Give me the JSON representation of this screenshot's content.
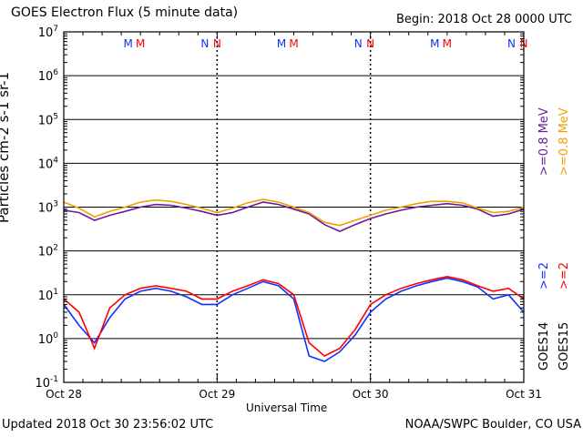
{
  "header": {
    "title": "GOES Electron Flux (5 minute data)",
    "begin": "Begin: 2018 Oct 28 0000 UTC"
  },
  "footer": {
    "updated": "Updated 2018 Oct 30 23:56:02 UTC",
    "credit": "NOAA/SWPC Boulder, CO USA"
  },
  "right_labels": {
    "goes14_08": ">=0.8 MeV",
    "goes14_2": ">=2",
    "goes14_sat": "GOES14",
    "goes15_08": ">=0.8 MeV",
    "goes15_2": ">=2",
    "goes15_sat": "GOES15"
  },
  "colors": {
    "goes14_08": "#6a1a9a",
    "goes15_08": "#f0a000",
    "goes14_2": "#1030ff",
    "goes15_2": "#ff0000",
    "marker_m14": "#1030ff",
    "marker_m15": "#ff0000"
  },
  "chart_data": {
    "type": "line",
    "title": "GOES Electron Flux (5 minute data)",
    "xlabel": "Universal Time",
    "ylabel": "Particles cm-2 s-1 sr-1",
    "ylog": true,
    "ylim_exp": [
      -1,
      7
    ],
    "ytick_exponents": [
      7,
      6,
      5,
      4,
      3,
      2,
      1,
      0,
      -1
    ],
    "x_ticks": [
      "Oct 28",
      "Oct 29",
      "Oct 30",
      "Oct 31"
    ],
    "xlim_days": [
      0,
      3
    ],
    "threshold": 1000,
    "grid": true,
    "markers": [
      {
        "day": 0.42,
        "label": "M",
        "sat": "goes14"
      },
      {
        "day": 0.5,
        "label": "M",
        "sat": "goes15"
      },
      {
        "day": 0.92,
        "label": "N",
        "sat": "goes14"
      },
      {
        "day": 1.0,
        "label": "N",
        "sat": "goes15"
      },
      {
        "day": 1.42,
        "label": "M",
        "sat": "goes14"
      },
      {
        "day": 1.5,
        "label": "M",
        "sat": "goes15"
      },
      {
        "day": 1.92,
        "label": "N",
        "sat": "goes14"
      },
      {
        "day": 2.0,
        "label": "N",
        "sat": "goes15"
      },
      {
        "day": 2.42,
        "label": "M",
        "sat": "goes14"
      },
      {
        "day": 2.5,
        "label": "M",
        "sat": "goes15"
      },
      {
        "day": 2.92,
        "label": "N",
        "sat": "goes14"
      },
      {
        "day": 3.0,
        "label": "N",
        "sat": "goes15"
      }
    ],
    "series": [
      {
        "name": "GOES14 >=0.8 MeV",
        "x": [
          0,
          0.1,
          0.2,
          0.3,
          0.4,
          0.5,
          0.6,
          0.7,
          0.8,
          0.9,
          1.0,
          1.1,
          1.2,
          1.3,
          1.4,
          1.5,
          1.6,
          1.7,
          1.8,
          1.9,
          2.0,
          2.1,
          2.2,
          2.3,
          2.4,
          2.5,
          2.6,
          2.7,
          2.8,
          2.9,
          3.0
        ],
        "y": [
          850,
          750,
          500,
          650,
          800,
          1000,
          1150,
          1100,
          950,
          800,
          650,
          750,
          1000,
          1300,
          1150,
          900,
          700,
          400,
          280,
          400,
          550,
          700,
          850,
          1000,
          1100,
          1200,
          1100,
          900,
          620,
          700,
          900
        ]
      },
      {
        "name": "GOES15 >=0.8 MeV",
        "x": [
          0,
          0.1,
          0.2,
          0.3,
          0.4,
          0.5,
          0.6,
          0.7,
          0.8,
          0.9,
          1.0,
          1.1,
          1.2,
          1.3,
          1.4,
          1.5,
          1.6,
          1.7,
          1.8,
          1.9,
          2.0,
          2.1,
          2.2,
          2.3,
          2.4,
          2.5,
          2.6,
          2.7,
          2.8,
          2.9,
          3.0
        ],
        "y": [
          1300,
          950,
          600,
          800,
          1000,
          1300,
          1450,
          1350,
          1150,
          950,
          750,
          950,
          1250,
          1500,
          1300,
          1000,
          750,
          450,
          380,
          500,
          650,
          850,
          1000,
          1200,
          1350,
          1350,
          1250,
          950,
          750,
          800,
          1000
        ]
      },
      {
        "name": "GOES14 >=2",
        "x": [
          0,
          0.1,
          0.2,
          0.3,
          0.4,
          0.5,
          0.6,
          0.7,
          0.8,
          0.9,
          1.0,
          1.1,
          1.2,
          1.3,
          1.4,
          1.5,
          1.6,
          1.7,
          1.8,
          1.9,
          2.0,
          2.1,
          2.2,
          2.3,
          2.4,
          2.5,
          2.6,
          2.7,
          2.8,
          2.9,
          3.0
        ],
        "y": [
          6,
          2,
          0.8,
          3,
          8,
          12,
          14,
          12,
          9,
          6,
          6,
          10,
          14,
          20,
          16,
          8,
          0.4,
          0.3,
          0.5,
          1.2,
          4,
          8,
          12,
          16,
          20,
          24,
          20,
          15,
          8,
          10,
          4
        ]
      },
      {
        "name": "GOES15 >=2",
        "x": [
          0,
          0.1,
          0.2,
          0.3,
          0.4,
          0.5,
          0.6,
          0.7,
          0.8,
          0.9,
          1.0,
          1.1,
          1.2,
          1.3,
          1.4,
          1.5,
          1.6,
          1.7,
          1.8,
          1.9,
          2.0,
          2.1,
          2.2,
          2.3,
          2.4,
          2.5,
          2.6,
          2.7,
          2.8,
          2.9,
          3.0
        ],
        "y": [
          8,
          4,
          0.6,
          5,
          10,
          14,
          16,
          14,
          12,
          8,
          8,
          12,
          16,
          22,
          18,
          10,
          0.8,
          0.4,
          0.6,
          1.6,
          6,
          10,
          14,
          18,
          22,
          26,
          22,
          16,
          12,
          14,
          8
        ]
      }
    ]
  }
}
